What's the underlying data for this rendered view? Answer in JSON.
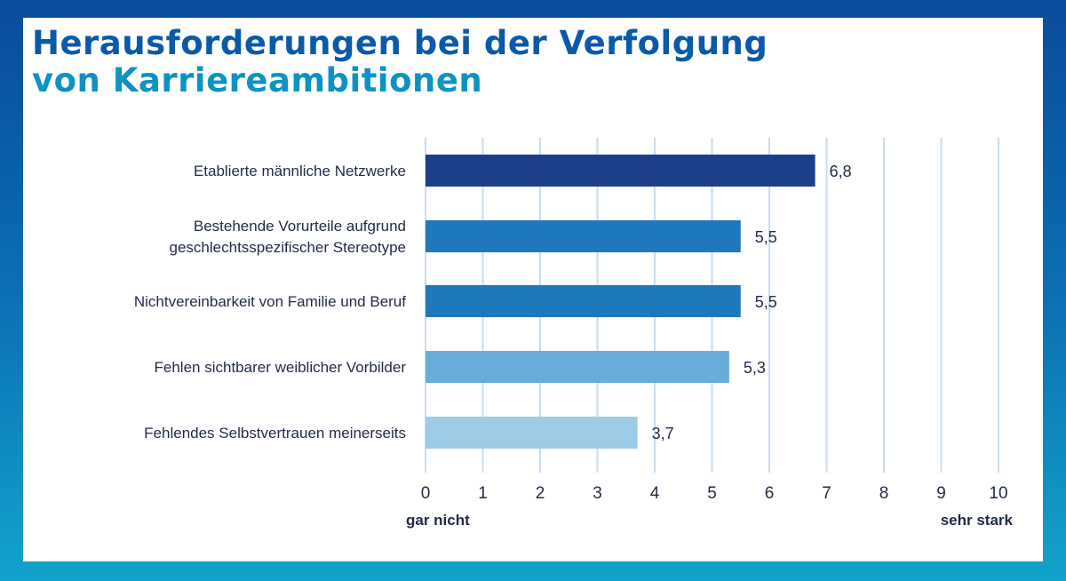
{
  "chart_data": {
    "type": "bar",
    "orientation": "horizontal",
    "title_lines": [
      "Herausforderungen bei der Verfolgung",
      "von Karriereambitionen"
    ],
    "categories": [
      [
        "Etablierte männliche Netzwerke"
      ],
      [
        "Bestehende Vorurteile aufgrund",
        "geschlechtsspezifischer Stereotype"
      ],
      [
        "Nichtvereinbarkeit von Familie und Beruf"
      ],
      [
        "Fehlen sichtbarer weiblicher Vorbilder"
      ],
      [
        "Fehlendes Selbstvertrauen meinerseits"
      ]
    ],
    "values": [
      6.8,
      5.5,
      5.5,
      5.3,
      3.7
    ],
    "value_labels": [
      "6,8",
      "5,5",
      "5,5",
      "5,3",
      "3,7"
    ],
    "bar_colors": [
      "#1d3f8a",
      "#1f77bc",
      "#1f77bc",
      "#66aed9",
      "#9dcce8"
    ],
    "xlim": [
      0,
      10
    ],
    "ticks": [
      "0",
      "1",
      "2",
      "3",
      "4",
      "5",
      "6",
      "7",
      "8",
      "9",
      "10"
    ],
    "x_min_label": "gar nicht",
    "x_max_label": "sehr stark",
    "grid": "vertical",
    "grid_color": "#c9dcf0"
  }
}
